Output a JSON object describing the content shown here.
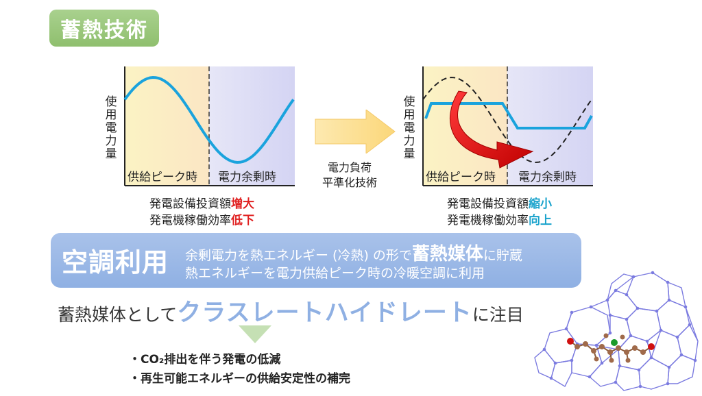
{
  "title": "蓄熱技術",
  "left_chart": {
    "ylabel_chars": [
      "使",
      "用",
      "電",
      "力",
      "量"
    ],
    "zone_peak": "供給ピーク時",
    "zone_surplus": "電力余剰時",
    "caption_line1_prefix": "発電設備投資額",
    "caption_line1_em": "増大",
    "caption_line2_prefix": "発電機稼働効率",
    "caption_line2_em": "低下"
  },
  "middle_arrow": {
    "line1": "電力負荷",
    "line2": "平準化技術"
  },
  "right_chart": {
    "ylabel_chars": [
      "使",
      "用",
      "電",
      "力",
      "量"
    ],
    "zone_peak": "供給ピーク時",
    "zone_surplus": "電力余剰時",
    "caption_line1_prefix": "発電設備投資額",
    "caption_line1_em": "縮小",
    "caption_line2_prefix": "発電機稼働効率",
    "caption_line2_em": "向上"
  },
  "banner": {
    "title": "空調利用",
    "line1_pre": "余剰電力を熱エネルギー (冷熱) の形で",
    "line1_strong": "蓄熱媒体",
    "line1_post": "に貯蔵",
    "line2": "熱エネルギーを電力供給ピーク時の冷暖空調に利用"
  },
  "focus": {
    "pre": "蓄熱媒体として",
    "strong": "クラスレートハイドレート",
    "post": "に注目"
  },
  "bullets": [
    "・CO₂排出を伴う発電の低減",
    "・再生可能エネルギーの供給安定性の補完"
  ],
  "colors": {
    "title_green": "#a9d18e",
    "banner_blue": "#8fb0e3",
    "curve_cyan": "#1aa3dd",
    "emphasis_red": "#e02020",
    "emphasis_cyan": "#1aa3cc",
    "zone_yellow": "#fbf3c4",
    "zone_lavender": "#dcdcf5",
    "bullet_arrow_green": "#c5e0b4",
    "molecule_frame": "#7b7be0"
  },
  "icons": [
    "right-arrow-icon",
    "curved-shift-arrow-icon",
    "down-triangle-icon",
    "clathrate-hydrate-structure-icon"
  ]
}
